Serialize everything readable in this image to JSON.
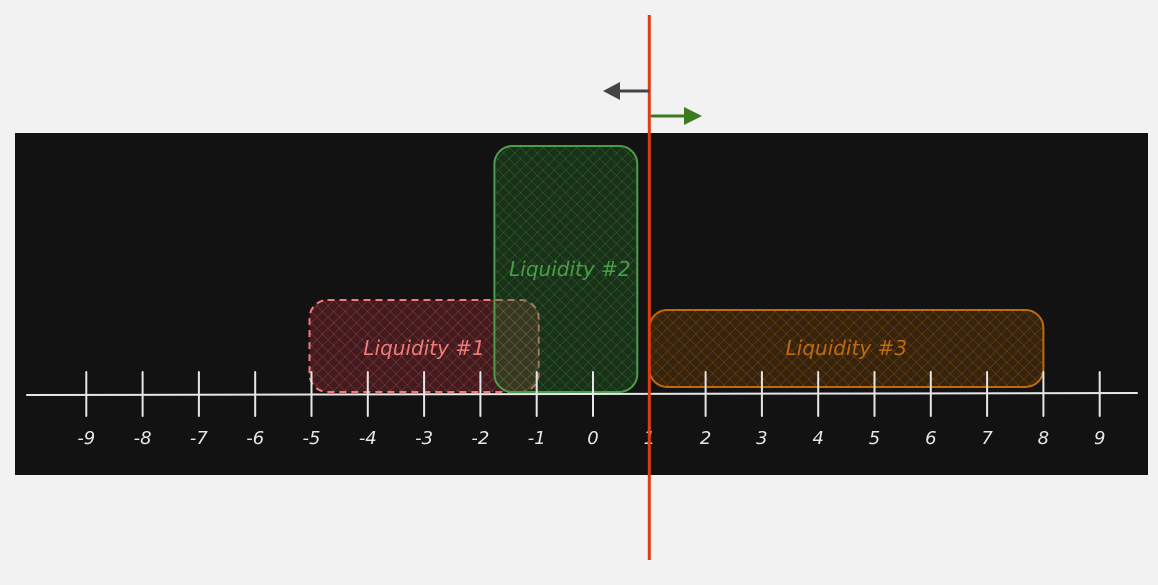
{
  "colors": {
    "page_background": "#f2f2f2",
    "panel_background": "#121212",
    "axis": "#e6e6e6",
    "price_line": "#e03c14",
    "arrow_left": "#444444",
    "arrow_right": "#3d7a1f",
    "liquidity_1": "#f07a7a",
    "liquidity_2": "#4a9e4a",
    "liquidity_3": "#c06a10"
  },
  "axis": {
    "ticks": [
      {
        "value": -9,
        "label": "-9"
      },
      {
        "value": -8,
        "label": "-8"
      },
      {
        "value": -7,
        "label": "-7"
      },
      {
        "value": -6,
        "label": "-6"
      },
      {
        "value": -5,
        "label": "-5"
      },
      {
        "value": -4,
        "label": "-4"
      },
      {
        "value": -3,
        "label": "-3"
      },
      {
        "value": -2,
        "label": "-2"
      },
      {
        "value": -1,
        "label": "-1"
      },
      {
        "value": 0,
        "label": "0"
      },
      {
        "value": 1,
        "label": "1"
      },
      {
        "value": 2,
        "label": "2"
      },
      {
        "value": 3,
        "label": "3"
      },
      {
        "value": 4,
        "label": "4"
      },
      {
        "value": 5,
        "label": "5"
      },
      {
        "value": 6,
        "label": "6"
      },
      {
        "value": 7,
        "label": "7"
      },
      {
        "value": 8,
        "label": "8"
      },
      {
        "value": 9,
        "label": "9"
      }
    ]
  },
  "ranges": [
    {
      "id": "liquidity-1",
      "label": "Liquidity #1",
      "from": -5,
      "to": -1,
      "color": "#f07a7a"
    },
    {
      "id": "liquidity-2",
      "label": "Liquidity #2",
      "from": -2,
      "to": 1,
      "color": "#4a9e4a"
    },
    {
      "id": "liquidity-3",
      "label": "Liquidity #3",
      "from": 1,
      "to": 8,
      "color": "#c06a10"
    }
  ],
  "current_price": {
    "value": 1
  }
}
